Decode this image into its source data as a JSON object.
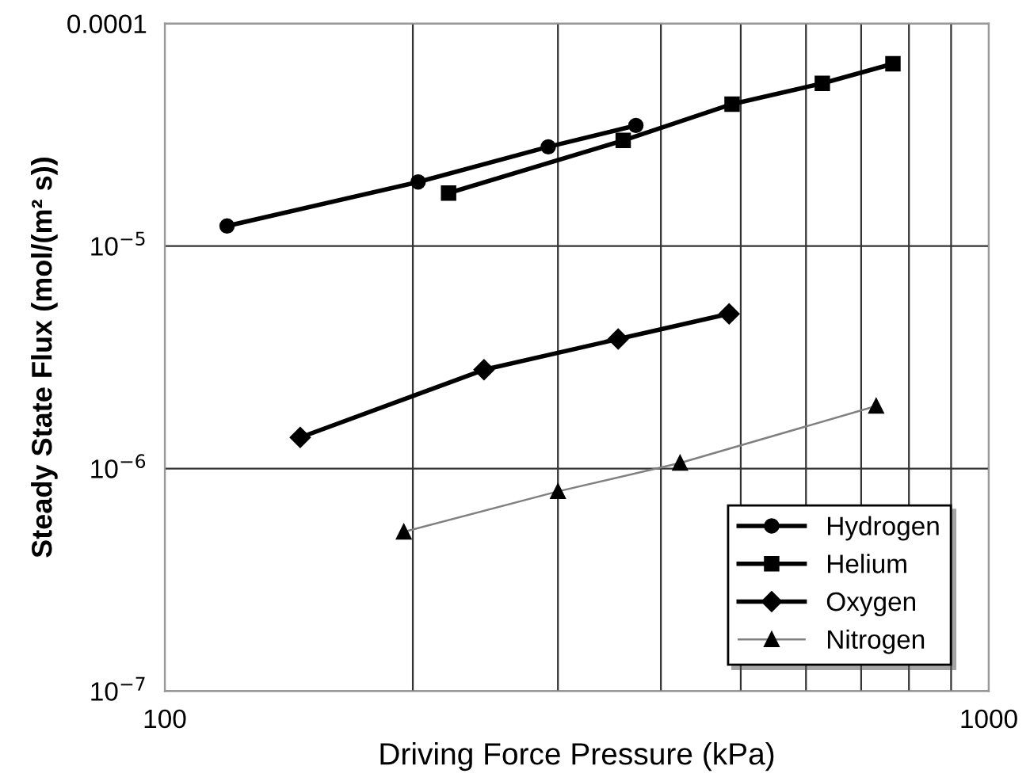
{
  "chart_data": {
    "type": "line",
    "xlabel": "Driving Force Pressure (kPa)",
    "ylabel": "Steady State Flux (mol/(m² s))",
    "log": "xy",
    "grid": true,
    "legend": "bottom right",
    "xlim": [
      100,
      1000
    ],
    "xticks": [
      100,
      {
        "value": 200,
        "label": null
      },
      {
        "value": 300,
        "label": null
      },
      {
        "value": 400,
        "label": null
      },
      {
        "value": 500,
        "label": null
      },
      {
        "value": 600,
        "label": null
      },
      {
        "value": 700,
        "label": null
      },
      {
        "value": 800,
        "label": null
      },
      {
        "value": 900,
        "label": null
      },
      1000
    ],
    "ylim": [
      1e-07,
      0.0001
    ],
    "yticks": [
      {
        "value": 1e-07,
        "label": "10$^{−7}$"
      },
      {
        "value": 1e-06,
        "label": "10$^{−6}$"
      },
      {
        "value": 1e-05,
        "label": "10$^{−5}$"
      },
      0.0001
    ],
    "series": [
      {
        "name": "Hydrogen",
        "color": "#000000",
        "marker": "circle",
        "x": [
          119,
          203,
          292,
          373
        ],
        "values": [
          1.23e-05,
          1.94e-05,
          2.79e-05,
          3.48e-05
        ]
      },
      {
        "name": "Helium",
        "color": "#000000",
        "marker": "square",
        "x": [
          221,
          360,
          488,
          628,
          765
        ],
        "values": [
          1.73e-05,
          2.98e-05,
          4.34e-05,
          5.38e-05,
          6.59e-05
        ]
      },
      {
        "name": "Oxygen",
        "color": "#000000",
        "marker": "diamond",
        "x": [
          146,
          244,
          355,
          484
        ],
        "values": [
          1.38e-06,
          2.78e-06,
          3.82e-06,
          4.96e-06
        ]
      },
      {
        "name": "Nitrogen",
        "color": "#808080",
        "marker": "triangle",
        "x": [
          195,
          300,
          422,
          730
        ],
        "values": [
          5.2e-07,
          7.9e-07,
          1.06e-06,
          1.91e-06
        ]
      }
    ]
  }
}
